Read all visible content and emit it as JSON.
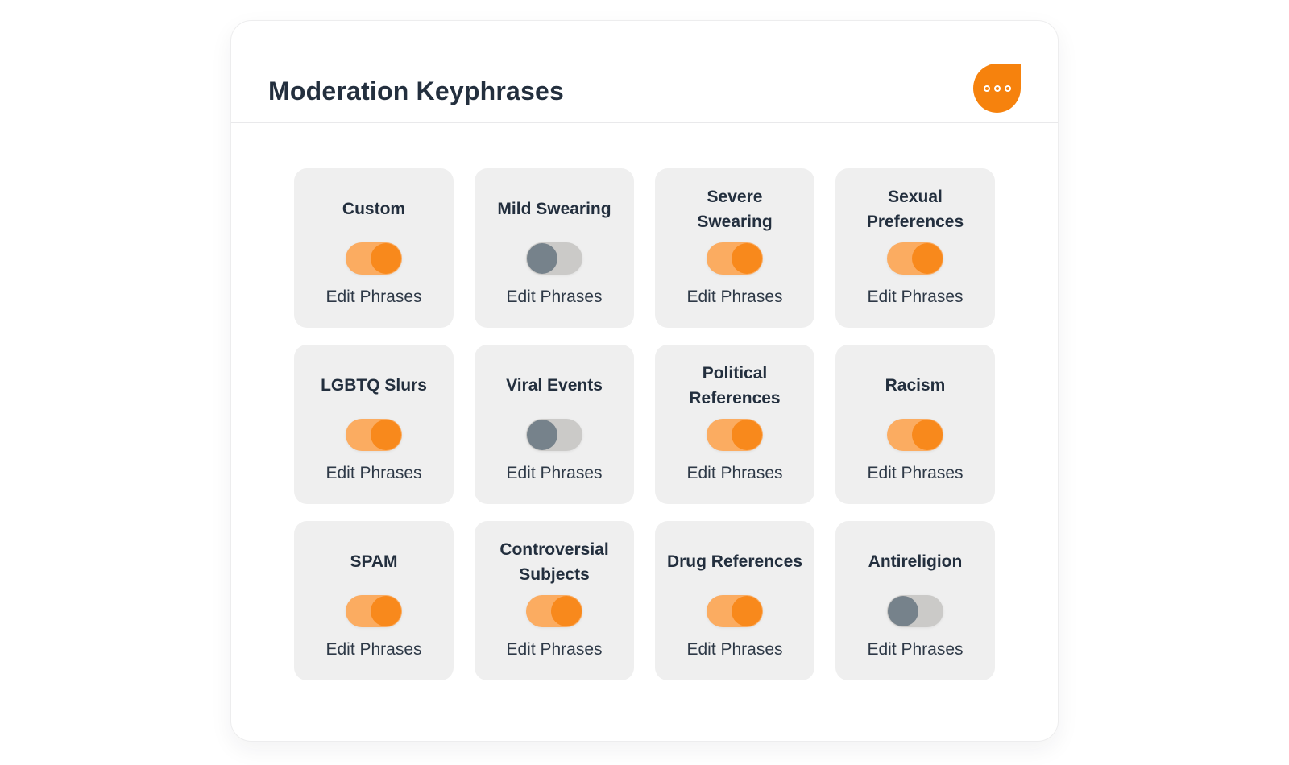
{
  "header": {
    "title": "Moderation Keyphrases",
    "menu_icon": "chat-bubble-ellipsis-icon"
  },
  "colors": {
    "accent_orange": "#f6820d",
    "toggle_on_track": "#fbac61",
    "toggle_on_knob": "#f8891c",
    "toggle_off_track": "#cbcac8",
    "toggle_off_knob": "#76828b",
    "card_background": "#efefef",
    "text_dark": "#232f3e"
  },
  "cards": [
    {
      "title": "Custom",
      "enabled": true,
      "action_label": "Edit Phrases"
    },
    {
      "title": "Mild Swearing",
      "enabled": false,
      "action_label": "Edit Phrases"
    },
    {
      "title": [
        "Severe",
        "Swearing"
      ],
      "enabled": true,
      "action_label": "Edit Phrases"
    },
    {
      "title": [
        "Sexual",
        "Preferences"
      ],
      "enabled": true,
      "action_label": "Edit Phrases"
    },
    {
      "title": "LGBTQ Slurs",
      "enabled": true,
      "action_label": "Edit Phrases"
    },
    {
      "title": "Viral Events",
      "enabled": false,
      "action_label": "Edit Phrases"
    },
    {
      "title": [
        "Political",
        "References"
      ],
      "enabled": true,
      "action_label": "Edit Phrases"
    },
    {
      "title": "Racism",
      "enabled": true,
      "action_label": "Edit Phrases"
    },
    {
      "title": "SPAM",
      "enabled": true,
      "action_label": "Edit Phrases"
    },
    {
      "title": [
        "Controversial",
        "Subjects"
      ],
      "enabled": true,
      "action_label": "Edit Phrases"
    },
    {
      "title": "Drug References",
      "enabled": true,
      "action_label": "Edit Phrases"
    },
    {
      "title": "Antireligion",
      "enabled": false,
      "action_label": "Edit Phrases"
    }
  ]
}
